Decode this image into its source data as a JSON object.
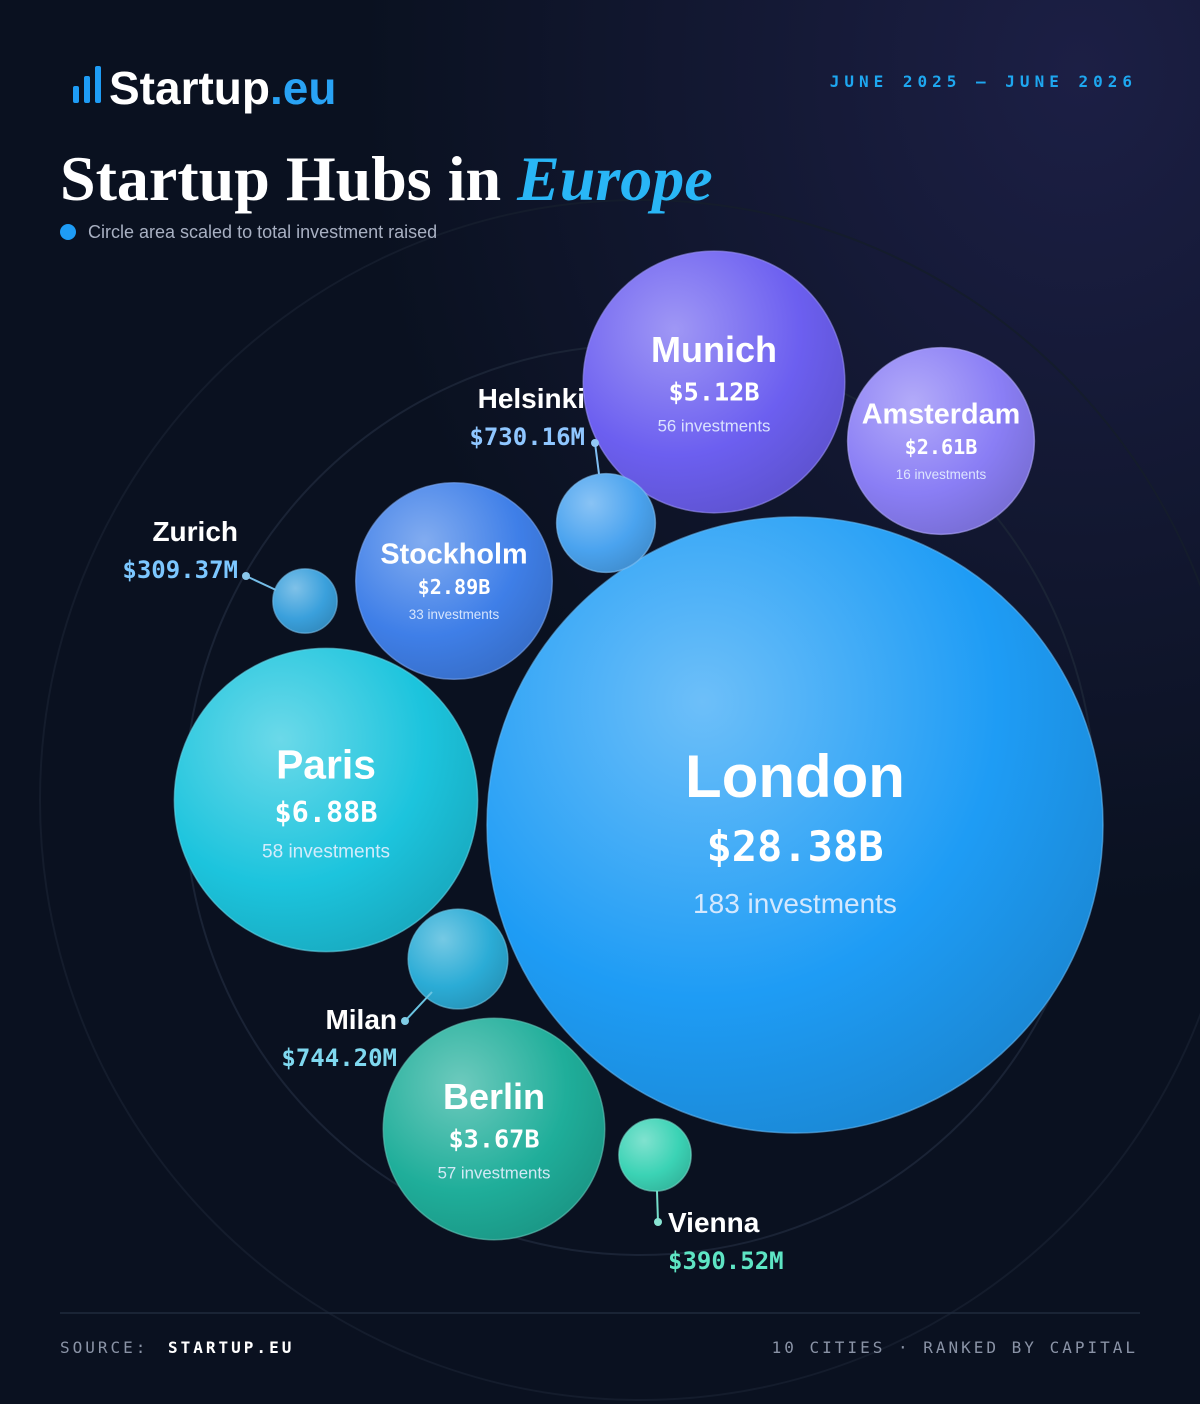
{
  "header": {
    "brand": "Startup",
    "brand_suffix": ".eu",
    "period": "JUNE 2025 — JUNE 2026"
  },
  "chart_data": {
    "type": "bubble",
    "title": "Startup Hubs in",
    "title_emphasis": "Europe",
    "note": "Circle area scaled to total investment raised",
    "categories": [
      "London",
      "Paris",
      "Munich",
      "Berlin",
      "Stockholm",
      "Amsterdam",
      "Milan",
      "Helsinki",
      "Vienna",
      "Zurich"
    ],
    "values": [
      28380,
      6880,
      5120,
      3670,
      2890,
      2610,
      744.2,
      730.16,
      390.52,
      309.37
    ],
    "value_labels": [
      "$28.38B",
      "$6.88B",
      "$5.12B",
      "$3.67B",
      "$2.89B",
      "$2.61B",
      "$744.20M",
      "$730.16M",
      "$390.52M",
      "$309.37M"
    ],
    "investment_labels": [
      "183 investments",
      "58 investments",
      "56 investments",
      "57 investments",
      "33 investments",
      "16 investments",
      null,
      null,
      null,
      null
    ],
    "colors": [
      "#1e9cf5",
      "#1cc4dd",
      "#6c5ff0",
      "#1fae9a",
      "#3f7fe8",
      "#8a7ef5",
      "#2bacd6",
      "#4aa3ef",
      "#3bd3b5",
      "#3aa0dc"
    ]
  },
  "footer": {
    "source_label": "SOURCE:",
    "source": "STARTUP.EU",
    "summary": "10 CITIES · RANKED BY CAPITAL"
  }
}
